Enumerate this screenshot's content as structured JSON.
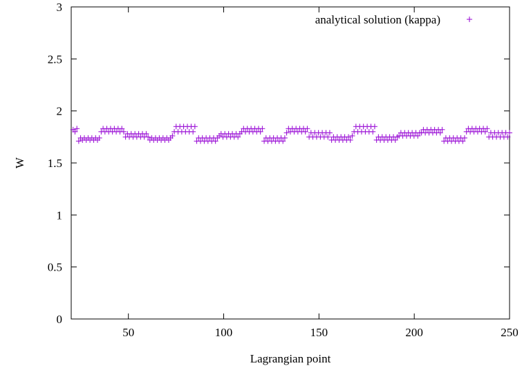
{
  "chart_data": {
    "type": "scatter",
    "xlabel": "Lagrangian point",
    "ylabel": "W",
    "xlim": [
      20,
      250
    ],
    "ylim": [
      0,
      3
    ],
    "x_ticks": [
      50,
      100,
      150,
      200,
      250
    ],
    "y_ticks": [
      0,
      0.5,
      1,
      1.5,
      2,
      2.5,
      3
    ],
    "y_tick_labels": [
      "0",
      "0.5",
      "1",
      "1.5",
      "2",
      "2.5",
      "3"
    ],
    "grid": false,
    "legend_position": "top-right",
    "series": [
      {
        "name": "analytical solution (kappa)",
        "marker": "+",
        "color": "#9400d3",
        "x_start": 21,
        "x_end": 250,
        "y": [
          1.82,
          1.8,
          1.83,
          1.71,
          1.74,
          1.72,
          1.74,
          1.72,
          1.74,
          1.72,
          1.74,
          1.72,
          1.74,
          1.72,
          1.74,
          1.8,
          1.83,
          1.8,
          1.83,
          1.8,
          1.83,
          1.8,
          1.83,
          1.8,
          1.83,
          1.8,
          1.83,
          1.8,
          1.75,
          1.78,
          1.75,
          1.78,
          1.75,
          1.78,
          1.75,
          1.78,
          1.75,
          1.78,
          1.75,
          1.78,
          1.75,
          1.72,
          1.74,
          1.72,
          1.74,
          1.72,
          1.74,
          1.72,
          1.74,
          1.72,
          1.74,
          1.72,
          1.74,
          1.76,
          1.8,
          1.85,
          1.8,
          1.85,
          1.8,
          1.85,
          1.8,
          1.85,
          1.8,
          1.85,
          1.8,
          1.85,
          1.71,
          1.74,
          1.71,
          1.74,
          1.71,
          1.74,
          1.71,
          1.74,
          1.71,
          1.74,
          1.71,
          1.74,
          1.76,
          1.78,
          1.75,
          1.78,
          1.75,
          1.78,
          1.75,
          1.78,
          1.75,
          1.78,
          1.75,
          1.78,
          1.8,
          1.83,
          1.8,
          1.83,
          1.8,
          1.83,
          1.8,
          1.83,
          1.8,
          1.83,
          1.8,
          1.83,
          1.71,
          1.74,
          1.71,
          1.74,
          1.71,
          1.74,
          1.71,
          1.74,
          1.71,
          1.74,
          1.71,
          1.74,
          1.79,
          1.83,
          1.8,
          1.83,
          1.8,
          1.83,
          1.8,
          1.83,
          1.8,
          1.83,
          1.8,
          1.83,
          1.75,
          1.79,
          1.75,
          1.79,
          1.75,
          1.79,
          1.75,
          1.79,
          1.75,
          1.79,
          1.75,
          1.79,
          1.72,
          1.75,
          1.72,
          1.75,
          1.72,
          1.75,
          1.72,
          1.75,
          1.72,
          1.75,
          1.72,
          1.76,
          1.8,
          1.85,
          1.8,
          1.85,
          1.8,
          1.85,
          1.8,
          1.85,
          1.8,
          1.85,
          1.8,
          1.85,
          1.72,
          1.75,
          1.72,
          1.75,
          1.72,
          1.75,
          1.72,
          1.75,
          1.72,
          1.75,
          1.72,
          1.75,
          1.76,
          1.79,
          1.76,
          1.79,
          1.76,
          1.79,
          1.76,
          1.79,
          1.76,
          1.79,
          1.76,
          1.79,
          1.79,
          1.82,
          1.79,
          1.82,
          1.79,
          1.82,
          1.79,
          1.82,
          1.79,
          1.82,
          1.79,
          1.82,
          1.71,
          1.74,
          1.71,
          1.74,
          1.71,
          1.74,
          1.71,
          1.74,
          1.71,
          1.74,
          1.71,
          1.74,
          1.8,
          1.83,
          1.8,
          1.83,
          1.8,
          1.83,
          1.8,
          1.83,
          1.8,
          1.83,
          1.8,
          1.83,
          1.75,
          1.79,
          1.75,
          1.79,
          1.75,
          1.79,
          1.75,
          1.79,
          1.75,
          1.79,
          1.75,
          1.79
        ]
      }
    ]
  }
}
